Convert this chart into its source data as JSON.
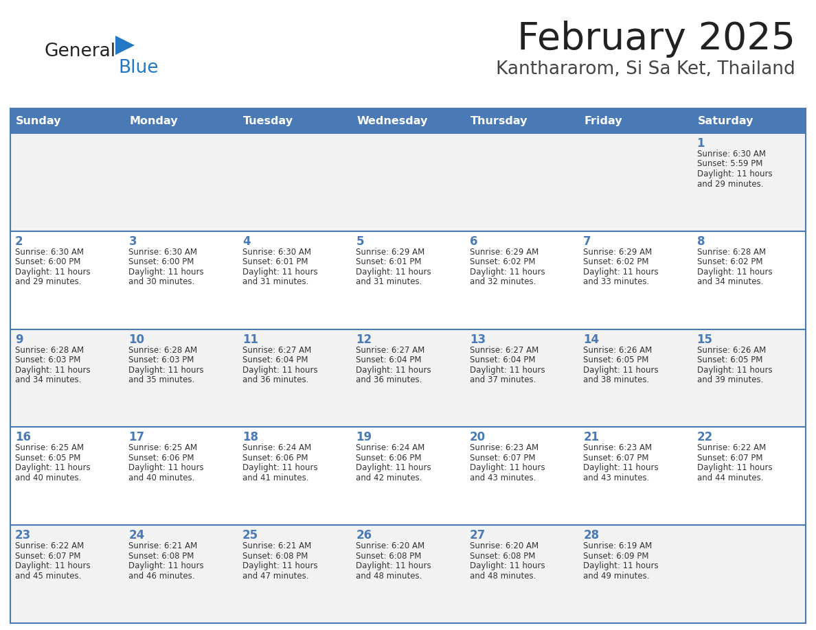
{
  "title": "February 2025",
  "subtitle": "Kanthararom, Si Sa Ket, Thailand",
  "days_of_week": [
    "Sunday",
    "Monday",
    "Tuesday",
    "Wednesday",
    "Thursday",
    "Friday",
    "Saturday"
  ],
  "header_bg": "#4a7ab5",
  "header_text": "#ffffff",
  "row_bg_odd": "#f2f2f2",
  "row_bg_even": "#ffffff",
  "grid_line_color": "#4a7ab5",
  "day_number_color": "#4a7ab5",
  "info_text_color": "#333333",
  "logo_general_color": "#222222",
  "logo_blue_color": "#2278c4",
  "logo_triangle_color": "#2278c4",
  "title_color": "#222222",
  "subtitle_color": "#444444",
  "calendar_data": [
    [
      null,
      null,
      null,
      null,
      null,
      null,
      {
        "day": 1,
        "sunrise": "6:30 AM",
        "sunset": "5:59 PM",
        "daylight": "11 hours and 29 minutes."
      }
    ],
    [
      {
        "day": 2,
        "sunrise": "6:30 AM",
        "sunset": "6:00 PM",
        "daylight": "11 hours and 29 minutes."
      },
      {
        "day": 3,
        "sunrise": "6:30 AM",
        "sunset": "6:00 PM",
        "daylight": "11 hours and 30 minutes."
      },
      {
        "day": 4,
        "sunrise": "6:30 AM",
        "sunset": "6:01 PM",
        "daylight": "11 hours and 31 minutes."
      },
      {
        "day": 5,
        "sunrise": "6:29 AM",
        "sunset": "6:01 PM",
        "daylight": "11 hours and 31 minutes."
      },
      {
        "day": 6,
        "sunrise": "6:29 AM",
        "sunset": "6:02 PM",
        "daylight": "11 hours and 32 minutes."
      },
      {
        "day": 7,
        "sunrise": "6:29 AM",
        "sunset": "6:02 PM",
        "daylight": "11 hours and 33 minutes."
      },
      {
        "day": 8,
        "sunrise": "6:28 AM",
        "sunset": "6:02 PM",
        "daylight": "11 hours and 34 minutes."
      }
    ],
    [
      {
        "day": 9,
        "sunrise": "6:28 AM",
        "sunset": "6:03 PM",
        "daylight": "11 hours and 34 minutes."
      },
      {
        "day": 10,
        "sunrise": "6:28 AM",
        "sunset": "6:03 PM",
        "daylight": "11 hours and 35 minutes."
      },
      {
        "day": 11,
        "sunrise": "6:27 AM",
        "sunset": "6:04 PM",
        "daylight": "11 hours and 36 minutes."
      },
      {
        "day": 12,
        "sunrise": "6:27 AM",
        "sunset": "6:04 PM",
        "daylight": "11 hours and 36 minutes."
      },
      {
        "day": 13,
        "sunrise": "6:27 AM",
        "sunset": "6:04 PM",
        "daylight": "11 hours and 37 minutes."
      },
      {
        "day": 14,
        "sunrise": "6:26 AM",
        "sunset": "6:05 PM",
        "daylight": "11 hours and 38 minutes."
      },
      {
        "day": 15,
        "sunrise": "6:26 AM",
        "sunset": "6:05 PM",
        "daylight": "11 hours and 39 minutes."
      }
    ],
    [
      {
        "day": 16,
        "sunrise": "6:25 AM",
        "sunset": "6:05 PM",
        "daylight": "11 hours and 40 minutes."
      },
      {
        "day": 17,
        "sunrise": "6:25 AM",
        "sunset": "6:06 PM",
        "daylight": "11 hours and 40 minutes."
      },
      {
        "day": 18,
        "sunrise": "6:24 AM",
        "sunset": "6:06 PM",
        "daylight": "11 hours and 41 minutes."
      },
      {
        "day": 19,
        "sunrise": "6:24 AM",
        "sunset": "6:06 PM",
        "daylight": "11 hours and 42 minutes."
      },
      {
        "day": 20,
        "sunrise": "6:23 AM",
        "sunset": "6:07 PM",
        "daylight": "11 hours and 43 minutes."
      },
      {
        "day": 21,
        "sunrise": "6:23 AM",
        "sunset": "6:07 PM",
        "daylight": "11 hours and 43 minutes."
      },
      {
        "day": 22,
        "sunrise": "6:22 AM",
        "sunset": "6:07 PM",
        "daylight": "11 hours and 44 minutes."
      }
    ],
    [
      {
        "day": 23,
        "sunrise": "6:22 AM",
        "sunset": "6:07 PM",
        "daylight": "11 hours and 45 minutes."
      },
      {
        "day": 24,
        "sunrise": "6:21 AM",
        "sunset": "6:08 PM",
        "daylight": "11 hours and 46 minutes."
      },
      {
        "day": 25,
        "sunrise": "6:21 AM",
        "sunset": "6:08 PM",
        "daylight": "11 hours and 47 minutes."
      },
      {
        "day": 26,
        "sunrise": "6:20 AM",
        "sunset": "6:08 PM",
        "daylight": "11 hours and 48 minutes."
      },
      {
        "day": 27,
        "sunrise": "6:20 AM",
        "sunset": "6:08 PM",
        "daylight": "11 hours and 48 minutes."
      },
      {
        "day": 28,
        "sunrise": "6:19 AM",
        "sunset": "6:09 PM",
        "daylight": "11 hours and 49 minutes."
      },
      null
    ]
  ]
}
